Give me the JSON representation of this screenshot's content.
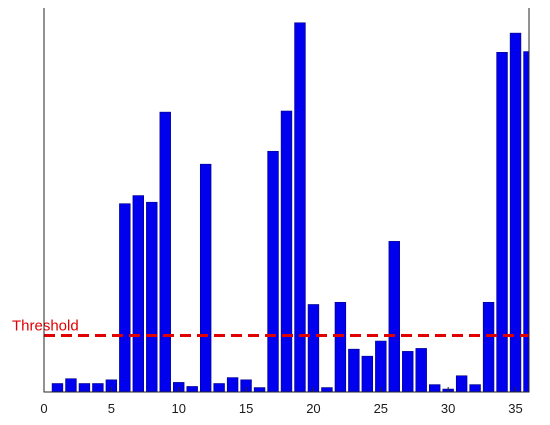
{
  "chart_data": {
    "type": "bar",
    "title": "",
    "xlabel": "",
    "ylabel": "",
    "x": [
      1,
      2,
      3,
      4,
      5,
      6,
      7,
      8,
      9,
      10,
      11,
      12,
      13,
      14,
      15,
      16,
      17,
      18,
      19,
      20,
      21,
      22,
      23,
      24,
      25,
      26,
      27,
      28,
      29,
      30,
      31,
      32,
      33,
      34,
      35,
      36
    ],
    "values": [
      2.3,
      3.6,
      2.3,
      2.3,
      3.3,
      51.0,
      53.2,
      51.4,
      75.8,
      2.6,
      1.5,
      61.7,
      2.3,
      3.9,
      3.3,
      1.2,
      65.2,
      76.1,
      100.0,
      23.7,
      1.2,
      24.3,
      11.6,
      9.7,
      13.8,
      40.8,
      11.0,
      11.8,
      2.0,
      0.8,
      4.4,
      2.0,
      24.3,
      92.0,
      97.2,
      92.2
    ],
    "xlim": [
      0,
      36
    ],
    "ylim": [
      0,
      104
    ],
    "xticks": [
      0,
      5,
      10,
      15,
      20,
      25,
      30,
      35
    ],
    "threshold": {
      "value": 15.3,
      "label": "Threshold"
    },
    "colors": {
      "bar": "#0000ee",
      "bar_edge": "#000080",
      "threshold": "#e00000",
      "axis": "#262626"
    },
    "grid": false,
    "legend": "none"
  }
}
